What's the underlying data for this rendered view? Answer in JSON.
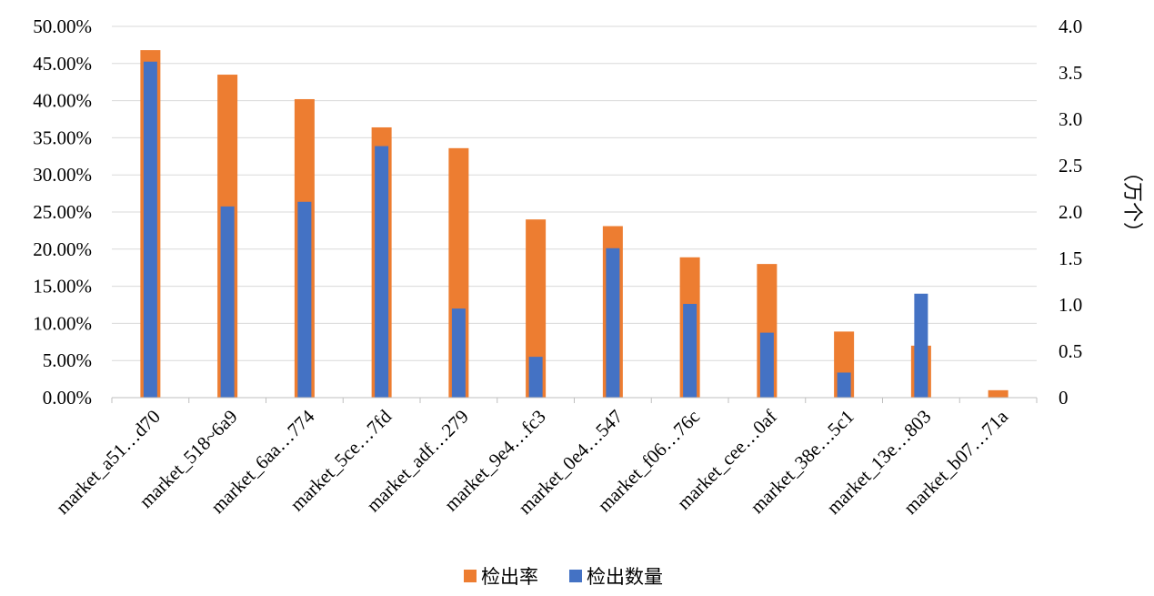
{
  "chart_data": {
    "type": "bar",
    "categories": [
      "market_a51…d70",
      "market_518~6a9",
      "market_6aa…774",
      "market_5ce…7fd",
      "market_adf…279",
      "market_9e4…fc3",
      "market_0e4…547",
      "market_f06…76c",
      "market_cee…0af",
      "market_38e…5c1",
      "market_13e…803",
      "market_b07…71a"
    ],
    "series": [
      {
        "name": "检出率",
        "axis": "left",
        "color": "#ED7D31",
        "values": [
          46.8,
          43.5,
          40.2,
          36.4,
          33.6,
          24.0,
          23.1,
          18.9,
          18.0,
          8.9,
          7.0,
          1.0
        ]
      },
      {
        "name": "检出数量",
        "axis": "right",
        "color": "#4472C4",
        "values": [
          3.62,
          2.06,
          2.11,
          2.71,
          0.96,
          0.44,
          1.61,
          1.01,
          0.7,
          0.27,
          1.12,
          0
        ]
      }
    ],
    "y_left": {
      "range": [
        0,
        50
      ],
      "ticks": [
        "0.00%",
        "5.00%",
        "10.00%",
        "15.00%",
        "20.00%",
        "25.00%",
        "30.00%",
        "35.00%",
        "40.00%",
        "45.00%",
        "50.00%"
      ]
    },
    "y_right": {
      "range": [
        0,
        4
      ],
      "ticks": [
        "0",
        "0.5",
        "1.0",
        "1.5",
        "2.0",
        "2.5",
        "3.0",
        "3.5",
        "4.0"
      ],
      "label": "（万个）"
    },
    "grid": true,
    "legend_position": "bottom"
  }
}
